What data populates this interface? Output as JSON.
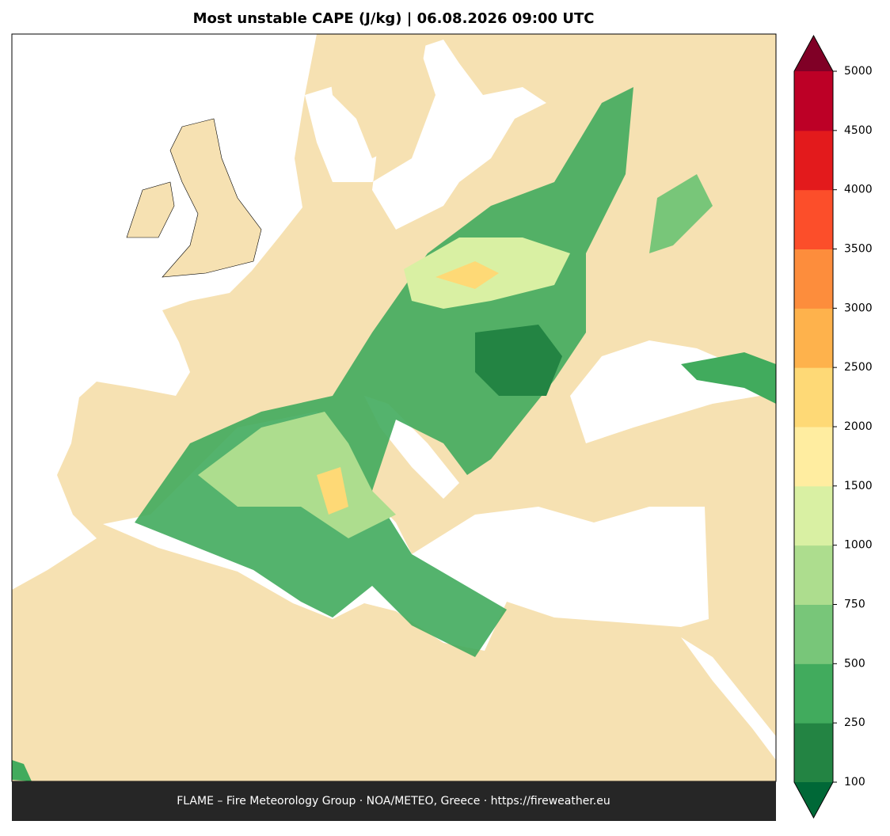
{
  "title": "Most unstable CAPE (J/kg)  |  06.08.2026 09:00 UTC",
  "footer": "FLAME – Fire Meteorology Group · NOA/METEO, Greece · https://fireweather.eu",
  "colorbar": {
    "ticks": [
      100,
      250,
      500,
      750,
      1000,
      1500,
      2000,
      2500,
      3000,
      3500,
      4000,
      4500,
      5000
    ],
    "colors": [
      "#238443",
      "#41ab5d",
      "#78c679",
      "#addd8e",
      "#d9f0a3",
      "#ffeda0",
      "#fed976",
      "#feb24c",
      "#fd8d3c",
      "#fc4e2a",
      "#e31a1c",
      "#bd0026"
    ],
    "under_color": "#006837",
    "over_color": "#800026"
  }
}
